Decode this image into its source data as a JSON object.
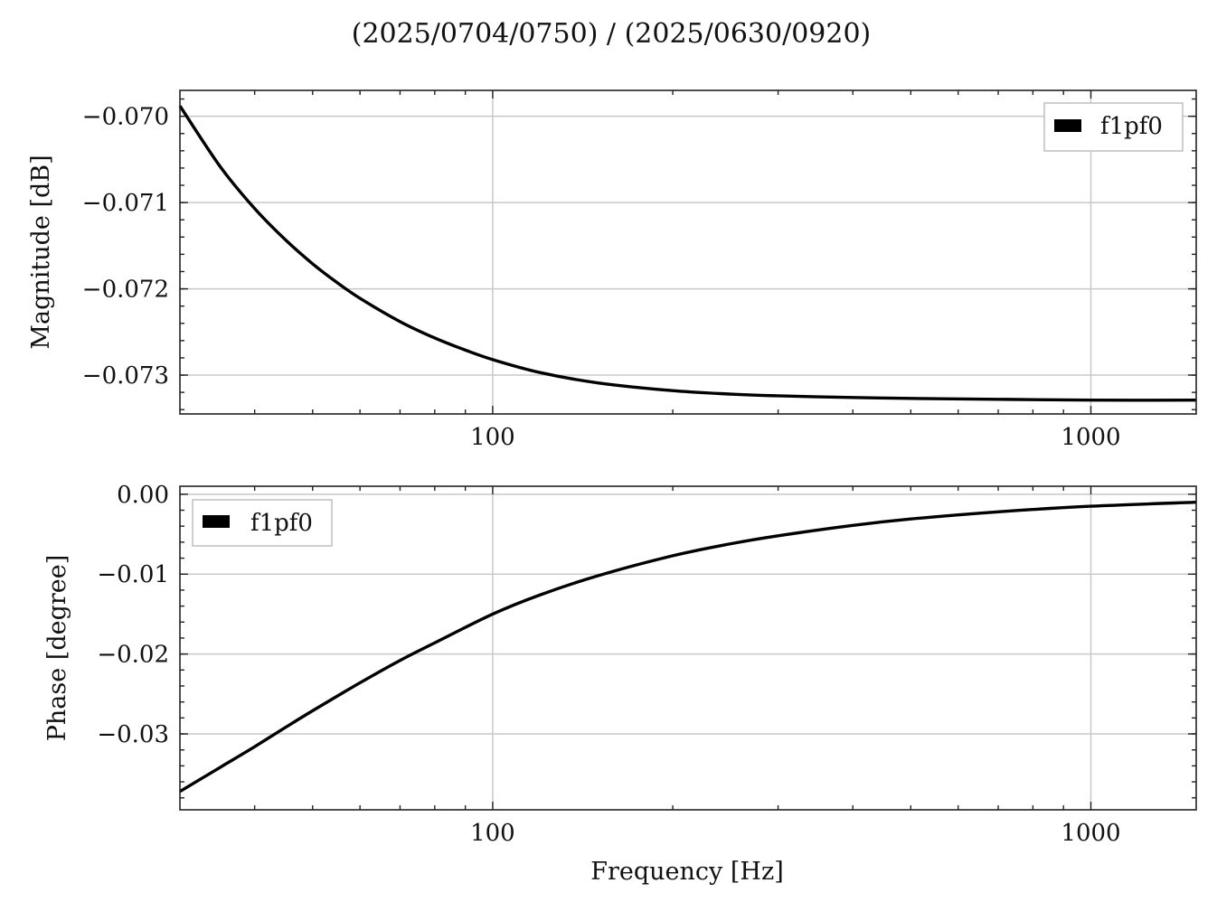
{
  "title": "(2025/0704/0750) / (2025/0630/0920)",
  "chart_data": [
    {
      "type": "line",
      "name": "magnitude",
      "xscale": "log",
      "xlim": [
        30,
        1500
      ],
      "ylim": [
        -0.07345,
        -0.0697
      ],
      "xticks": [
        100,
        1000
      ],
      "xtick_labels": [
        "100",
        "1000"
      ],
      "yticks": [
        -0.07,
        -0.071,
        -0.072,
        -0.073
      ],
      "ytick_labels": [
        "−0.070",
        "−0.071",
        "−0.072",
        "−0.073"
      ],
      "xlabel": "",
      "ylabel": "Magnitude [dB]",
      "grid": true,
      "legend_position": "upper-right",
      "series": [
        {
          "name": "f1pf0",
          "color": "#000000",
          "x": [
            30,
            35,
            40,
            45,
            50,
            55,
            60,
            70,
            80,
            90,
            100,
            120,
            150,
            200,
            250,
            300,
            400,
            500,
            700,
            1000,
            1500
          ],
          "y": [
            -0.06988,
            -0.07058,
            -0.07107,
            -0.07143,
            -0.07171,
            -0.07193,
            -0.07211,
            -0.07238,
            -0.07257,
            -0.07271,
            -0.07282,
            -0.07297,
            -0.07309,
            -0.07318,
            -0.07322,
            -0.07324,
            -0.07326,
            -0.07327,
            -0.07328,
            -0.07329,
            -0.07329
          ]
        }
      ]
    },
    {
      "type": "line",
      "name": "phase",
      "xscale": "log",
      "xlim": [
        30,
        1500
      ],
      "ylim": [
        -0.0395,
        0.001
      ],
      "xticks": [
        100,
        1000
      ],
      "xtick_labels": [
        "100",
        "1000"
      ],
      "yticks": [
        0.0,
        -0.01,
        -0.02,
        -0.03
      ],
      "ytick_labels": [
        "0.00",
        "−0.01",
        "−0.02",
        "−0.03"
      ],
      "xlabel": "Frequency [Hz]",
      "ylabel": "Phase [degree]",
      "grid": true,
      "legend_position": "upper-left",
      "series": [
        {
          "name": "f1pf0",
          "color": "#000000",
          "x": [
            30,
            35,
            40,
            45,
            50,
            60,
            70,
            80,
            100,
            120,
            150,
            200,
            250,
            300,
            400,
            500,
            700,
            1000,
            1500
          ],
          "y": [
            -0.0372,
            -0.0342,
            -0.0316,
            -0.0292,
            -0.0271,
            -0.0236,
            -0.0208,
            -0.0186,
            -0.015,
            -0.0126,
            -0.0102,
            -0.0077,
            -0.0062,
            -0.0052,
            -0.0039,
            -0.0031,
            -0.0022,
            -0.0015,
            -0.001
          ]
        }
      ]
    }
  ]
}
